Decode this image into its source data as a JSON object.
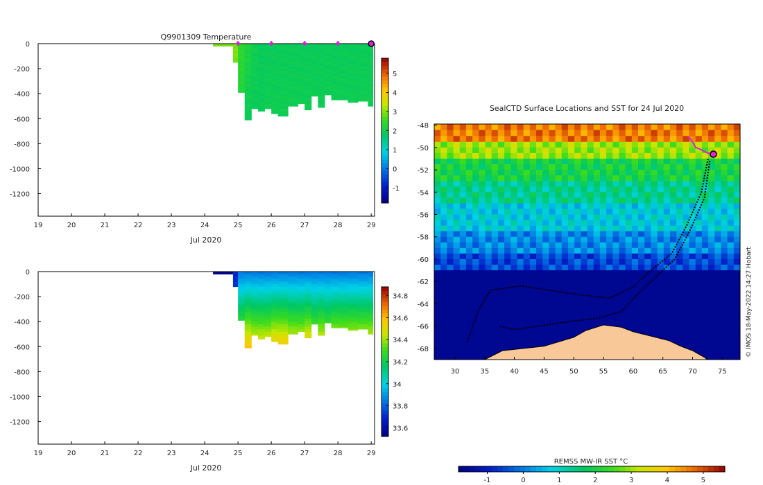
{
  "chart_data": [
    {
      "type": "heatmap",
      "title": "Q9901309  Temperature",
      "xlabel": "Jul 2020",
      "x_ticks": [
        "19",
        "20",
        "21",
        "22",
        "23",
        "24",
        "25",
        "26",
        "27",
        "28",
        "29"
      ],
      "xlim": [
        19,
        29.1
      ],
      "y_ticks": [
        "0",
        "-200",
        "-400",
        "-600",
        "-800",
        "-1000",
        "-1200"
      ],
      "ylim": [
        -1380,
        0
      ],
      "colorbar_ticks": [
        "5",
        "4",
        "3",
        "2",
        "1",
        "0",
        "-1"
      ],
      "colorbar_range": [
        -1.8,
        5.8
      ],
      "profile_markers_x": [
        25,
        26,
        27,
        28
      ],
      "current_profile_x": 29,
      "columns": [
        {
          "x0": 24.25,
          "x1": 24.85,
          "depth": -20,
          "surface": 3.0,
          "deep": 3.0
        },
        {
          "x0": 24.85,
          "x1": 25.0,
          "depth": -150,
          "surface": 3.0,
          "deep": 2.6
        },
        {
          "x0": 25.0,
          "x1": 25.2,
          "depth": -390,
          "surface": 2.4,
          "deep": 2.2
        },
        {
          "x0": 25.2,
          "x1": 25.4,
          "depth": -610,
          "surface": 2.2,
          "deep": 1.9
        },
        {
          "x0": 25.4,
          "x1": 25.6,
          "depth": -520,
          "surface": 2.0,
          "deep": 1.9
        },
        {
          "x0": 25.6,
          "x1": 25.8,
          "depth": -540,
          "surface": 1.9,
          "deep": 1.9
        },
        {
          "x0": 25.8,
          "x1": 26.0,
          "depth": -520,
          "surface": 1.9,
          "deep": 2.0
        },
        {
          "x0": 26.0,
          "x1": 26.2,
          "depth": -560,
          "surface": 1.9,
          "deep": 2.0
        },
        {
          "x0": 26.2,
          "x1": 26.5,
          "depth": -580,
          "surface": 1.9,
          "deep": 2.0
        },
        {
          "x0": 26.5,
          "x1": 26.8,
          "depth": -500,
          "surface": 1.9,
          "deep": 2.0
        },
        {
          "x0": 26.8,
          "x1": 27.0,
          "depth": -480,
          "surface": 1.9,
          "deep": 2.0
        },
        {
          "x0": 27.0,
          "x1": 27.2,
          "depth": -530,
          "surface": 1.9,
          "deep": 2.0
        },
        {
          "x0": 27.2,
          "x1": 27.4,
          "depth": -420,
          "surface": 1.9,
          "deep": 2.0
        },
        {
          "x0": 27.4,
          "x1": 27.6,
          "depth": -510,
          "surface": 1.9,
          "deep": 2.0
        },
        {
          "x0": 27.6,
          "x1": 27.8,
          "depth": -410,
          "surface": 1.9,
          "deep": 2.0
        },
        {
          "x0": 27.8,
          "x1": 28.0,
          "depth": -450,
          "surface": 1.9,
          "deep": 2.0
        },
        {
          "x0": 28.0,
          "x1": 28.3,
          "depth": -450,
          "surface": 1.9,
          "deep": 2.0
        },
        {
          "x0": 28.3,
          "x1": 28.6,
          "depth": -470,
          "surface": 1.9,
          "deep": 2.0
        },
        {
          "x0": 28.6,
          "x1": 28.9,
          "depth": -460,
          "surface": 1.9,
          "deep": 2.0
        },
        {
          "x0": 28.9,
          "x1": 29.05,
          "depth": -500,
          "surface": 1.9,
          "deep": 2.0
        }
      ]
    },
    {
      "type": "heatmap",
      "title": "",
      "xlabel": "Jul 2020",
      "x_ticks": [
        "19",
        "20",
        "21",
        "22",
        "23",
        "24",
        "25",
        "26",
        "27",
        "28",
        "29"
      ],
      "xlim": [
        19,
        29.1
      ],
      "y_ticks": [
        "0",
        "-200",
        "-400",
        "-600",
        "-800",
        "-1000",
        "-1200"
      ],
      "ylim": [
        -1380,
        0
      ],
      "colorbar_ticks": [
        "34.8",
        "34.6",
        "34.4",
        "34.2",
        "34",
        "33.8",
        "33.6"
      ],
      "colorbar_range": [
        33.52,
        34.88
      ],
      "columns": [
        {
          "x0": 24.25,
          "x1": 24.85,
          "depth": -20,
          "surface": 33.55,
          "deep": 33.55
        },
        {
          "x0": 24.85,
          "x1": 25.0,
          "depth": -120,
          "surface": 33.7,
          "deep": 33.8
        },
        {
          "x0": 25.0,
          "x1": 25.2,
          "depth": -390,
          "surface": 33.85,
          "deep": 34.5
        },
        {
          "x0": 25.2,
          "x1": 25.4,
          "depth": -610,
          "surface": 33.85,
          "deep": 34.6
        },
        {
          "x0": 25.4,
          "x1": 25.6,
          "depth": -510,
          "surface": 33.85,
          "deep": 34.55
        },
        {
          "x0": 25.6,
          "x1": 25.8,
          "depth": -540,
          "surface": 33.85,
          "deep": 34.55
        },
        {
          "x0": 25.8,
          "x1": 26.0,
          "depth": -520,
          "surface": 33.85,
          "deep": 34.55
        },
        {
          "x0": 26.0,
          "x1": 26.2,
          "depth": -560,
          "surface": 33.85,
          "deep": 34.6
        },
        {
          "x0": 26.2,
          "x1": 26.5,
          "depth": -580,
          "surface": 33.85,
          "deep": 34.6
        },
        {
          "x0": 26.5,
          "x1": 26.8,
          "depth": -500,
          "surface": 33.85,
          "deep": 34.55
        },
        {
          "x0": 26.8,
          "x1": 27.0,
          "depth": -480,
          "surface": 33.85,
          "deep": 34.55
        },
        {
          "x0": 27.0,
          "x1": 27.2,
          "depth": -530,
          "surface": 33.85,
          "deep": 34.6
        },
        {
          "x0": 27.2,
          "x1": 27.4,
          "depth": -420,
          "surface": 33.85,
          "deep": 34.5
        },
        {
          "x0": 27.4,
          "x1": 27.6,
          "depth": -510,
          "surface": 33.85,
          "deep": 34.55
        },
        {
          "x0": 27.6,
          "x1": 27.8,
          "depth": -410,
          "surface": 33.85,
          "deep": 34.5
        },
        {
          "x0": 27.8,
          "x1": 28.0,
          "depth": -450,
          "surface": 33.85,
          "deep": 34.55
        },
        {
          "x0": 28.0,
          "x1": 28.3,
          "depth": -450,
          "surface": 33.85,
          "deep": 34.55
        },
        {
          "x0": 28.3,
          "x1": 28.6,
          "depth": -470,
          "surface": 33.85,
          "deep": 34.55
        },
        {
          "x0": 28.6,
          "x1": 28.9,
          "depth": -460,
          "surface": 33.85,
          "deep": 34.55
        },
        {
          "x0": 28.9,
          "x1": 29.05,
          "depth": -500,
          "surface": 33.85,
          "deep": 34.55
        }
      ]
    },
    {
      "type": "heatmap",
      "title": "SealCTD Surface Locations and SST for 24 Jul 2020",
      "x_ticks": [
        "30",
        "35",
        "40",
        "45",
        "50",
        "55",
        "60",
        "65",
        "70",
        "75"
      ],
      "xlim": [
        26.5,
        78.0
      ],
      "y_ticks": [
        "-48",
        "-50",
        "-52",
        "-54",
        "-56",
        "-58",
        "-60",
        "-62",
        "-64",
        "-66",
        "-68"
      ],
      "ylim": [
        -69.0,
        -47.9
      ],
      "colorbar_label": "REMSS MW-IR SST °C",
      "colorbar_ticks": [
        "-1",
        "0",
        "1",
        "2",
        "3",
        "4",
        "5"
      ],
      "colorbar_range": [
        -1.8,
        5.6
      ],
      "sst_bands": [
        {
          "lat_top": -47.9,
          "lat_bottom": -49.5,
          "sst": 4.6
        },
        {
          "lat_top": -49.5,
          "lat_bottom": -51.0,
          "sst": 3.0
        },
        {
          "lat_top": -51.0,
          "lat_bottom": -53.0,
          "sst": 2.0
        },
        {
          "lat_top": -53.0,
          "lat_bottom": -55.0,
          "sst": 1.4
        },
        {
          "lat_top": -55.0,
          "lat_bottom": -57.5,
          "sst": 0.8
        },
        {
          "lat_top": -57.5,
          "lat_bottom": -59.5,
          "sst": 0.1
        },
        {
          "lat_top": -59.5,
          "lat_bottom": -61.0,
          "sst": -0.5
        },
        {
          "lat_top": -61.0,
          "lat_bottom": -69.0,
          "sst": -1.6
        }
      ],
      "land": [
        [
          [
            35.0,
            -69.0
          ],
          [
            38.0,
            -68.2
          ],
          [
            45.0,
            -67.8
          ],
          [
            50.0,
            -67.0
          ],
          [
            52.0,
            -66.4
          ],
          [
            55.0,
            -65.9
          ],
          [
            58.0,
            -66.1
          ],
          [
            60.0,
            -66.5
          ],
          [
            63.0,
            -66.9
          ],
          [
            66.0,
            -67.3
          ],
          [
            68.0,
            -67.8
          ],
          [
            70.0,
            -68.2
          ],
          [
            72.0,
            -68.8
          ],
          [
            72.5,
            -69.0
          ]
        ]
      ],
      "track_a": [
        [
          72.6,
          -51.0
        ],
        [
          71.5,
          -54.0
        ],
        [
          69.0,
          -57.0
        ],
        [
          66.5,
          -59.5
        ],
        [
          63.0,
          -61.0
        ],
        [
          60.0,
          -62.5
        ],
        [
          56.0,
          -63.5
        ],
        [
          51.0,
          -63.2
        ],
        [
          46.0,
          -62.8
        ],
        [
          41.0,
          -62.4
        ],
        [
          36.0,
          -62.8
        ],
        [
          34.0,
          -64.5
        ],
        [
          32.0,
          -67.5
        ]
      ],
      "track_b": [
        [
          72.9,
          -51.2
        ],
        [
          72.0,
          -54.5
        ],
        [
          69.5,
          -57.5
        ],
        [
          67.0,
          -60.0
        ],
        [
          64.0,
          -61.5
        ],
        [
          61.0,
          -63.0
        ],
        [
          58.0,
          -64.7
        ],
        [
          54.0,
          -65.3
        ],
        [
          49.0,
          -65.6
        ],
        [
          44.0,
          -66.0
        ],
        [
          40.0,
          -66.3
        ],
        [
          37.5,
          -66.0
        ]
      ],
      "tag_path": [
        [
          69.2,
          -49.0
        ],
        [
          70.0,
          -49.5
        ],
        [
          70.5,
          -50.0
        ],
        [
          71.5,
          -50.2
        ],
        [
          72.5,
          -50.5
        ],
        [
          73.2,
          -50.6
        ]
      ],
      "current_position": [
        73.5,
        -50.6
      ],
      "watermark": "© IMOS 18-May-2022 14:27 Hobart"
    }
  ]
}
